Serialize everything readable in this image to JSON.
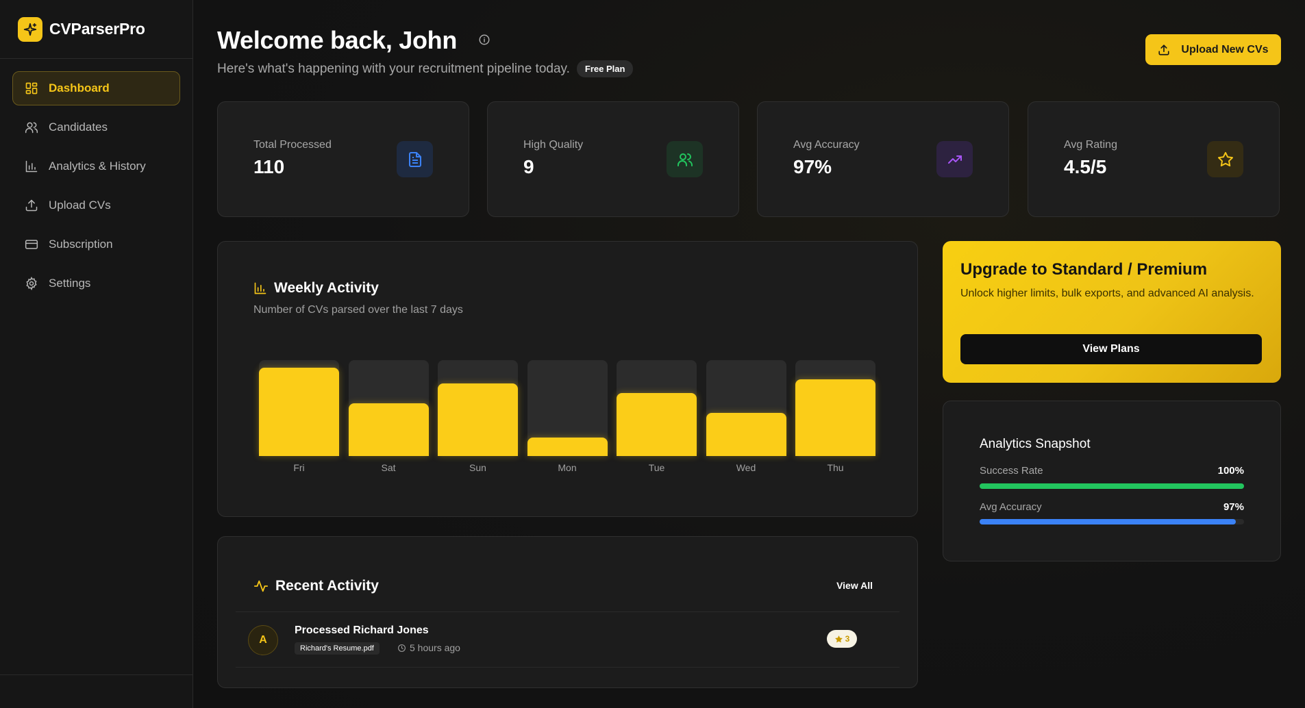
{
  "brand": {
    "name": "CVParserPro",
    "icon": "sparkle-icon"
  },
  "sidebar": {
    "items": [
      {
        "label": "Dashboard",
        "icon": "grid-icon",
        "active": true
      },
      {
        "label": "Candidates",
        "icon": "users-icon",
        "active": false
      },
      {
        "label": "Analytics & History",
        "icon": "bar-chart-icon",
        "active": false
      },
      {
        "label": "Upload CVs",
        "icon": "upload-icon",
        "active": false
      },
      {
        "label": "Subscription",
        "icon": "credit-card-icon",
        "active": false
      },
      {
        "label": "Settings",
        "icon": "gear-icon",
        "active": false
      }
    ]
  },
  "header": {
    "title": "Welcome back, John",
    "subtitle": "Here's what's happening with your recruitment pipeline today.",
    "plan_badge": "Free Plan",
    "upload_label": "Upload New CVs"
  },
  "stats": [
    {
      "label": "Total Processed",
      "value": "110",
      "icon": "document-icon",
      "color": "#3b82f6"
    },
    {
      "label": "High Quality",
      "value": "9",
      "icon": "users-icon",
      "color": "#22c55e"
    },
    {
      "label": "Avg Accuracy",
      "value": "97%",
      "icon": "trending-up-icon",
      "color": "#a855f7"
    },
    {
      "label": "Avg Rating",
      "value": "4.5/5",
      "icon": "star-icon",
      "color": "#f5c518"
    }
  ],
  "weekly": {
    "title": "Weekly Activity",
    "subtitle": "Number of CVs parsed over the last 7 days"
  },
  "chart_data": {
    "type": "bar",
    "categories": [
      "Fri",
      "Sat",
      "Sun",
      "Mon",
      "Tue",
      "Wed",
      "Thu"
    ],
    "values": [
      0.92,
      0.55,
      0.76,
      0.19,
      0.66,
      0.45,
      0.8
    ],
    "max": 1
  },
  "recent": {
    "title": "Recent Activity",
    "view_all": "View All",
    "items": [
      {
        "avatar": "A",
        "title": "Processed Richard Jones",
        "file": "Richard's Resume.pdf",
        "time": "5 hours ago",
        "rating": "3"
      }
    ]
  },
  "upgrade": {
    "title": "Upgrade to Standard / Premium",
    "text": "Unlock higher limits, bulk exports, and advanced AI analysis.",
    "button": "View Plans"
  },
  "snapshot": {
    "title": "Analytics Snapshot",
    "metrics": [
      {
        "label": "Success Rate",
        "value": "100%",
        "pct": 100,
        "color": "#22c55e"
      },
      {
        "label": "Avg Accuracy",
        "value": "97%",
        "pct": 97,
        "color": "#3b82f6"
      }
    ]
  },
  "colors": {
    "accent": "#f5c518",
    "background": "#121212",
    "card": "#1e1e1e"
  }
}
